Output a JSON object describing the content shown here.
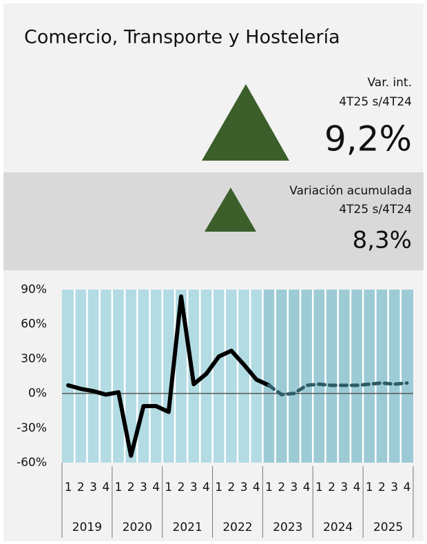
{
  "title": "Comercio, Transporte y Hostelería",
  "kpis": [
    {
      "label_lines": [
        "Var. int.",
        "4T25 s/4T24"
      ],
      "value_label": "9,2%",
      "direction": "up",
      "color": "#3b5e2b"
    },
    {
      "label_lines": [
        "Variación acumulada",
        "4T25 s/4T24"
      ],
      "value_label": "8,3%",
      "direction": "up",
      "color": "#3b5e2b"
    }
  ],
  "chart_data": {
    "type": "line",
    "years": [
      "2019",
      "2020",
      "2021",
      "2022",
      "2023",
      "2024",
      "2025"
    ],
    "quarters": [
      "1",
      "2",
      "3",
      "4"
    ],
    "shaded_from_year": "2023",
    "ylim": [
      -60,
      90
    ],
    "yticks": [
      {
        "value": -60,
        "label": "-60%"
      },
      {
        "value": -30,
        "label": "-30%"
      },
      {
        "value": 0,
        "label": "0%"
      },
      {
        "value": 30,
        "label": "30%"
      },
      {
        "value": 60,
        "label": "60%"
      },
      {
        "value": 90,
        "label": "90%"
      }
    ],
    "series": [
      {
        "style": "solid",
        "color": "#000000",
        "values": [
          7,
          4,
          2,
          -1,
          1,
          -54,
          -11,
          -11,
          -16,
          84,
          8,
          17,
          32,
          37,
          25,
          12,
          7,
          null,
          null,
          null,
          null,
          null,
          null,
          null,
          null,
          null,
          null,
          null
        ]
      },
      {
        "style": "dashed",
        "color": "#2e5c66",
        "values": [
          null,
          null,
          null,
          null,
          null,
          null,
          null,
          null,
          null,
          null,
          null,
          null,
          null,
          null,
          null,
          null,
          7,
          -1,
          0,
          7,
          8,
          7,
          7,
          7,
          8,
          9,
          8,
          9
        ]
      }
    ]
  }
}
